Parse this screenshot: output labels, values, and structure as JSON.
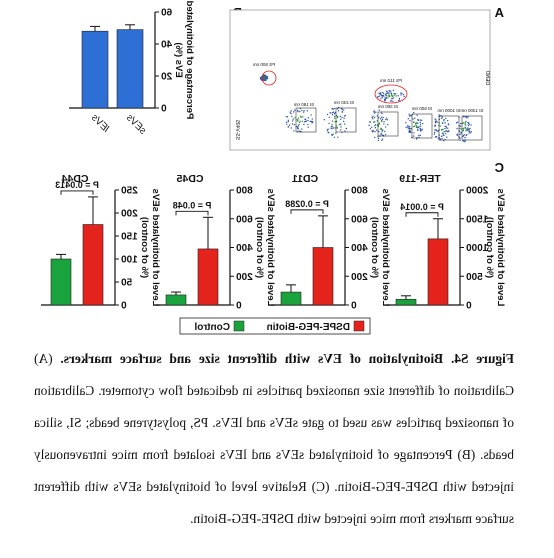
{
  "panel_labels": [
    "A",
    "B",
    "C"
  ],
  "panel_a": {
    "gates": [
      "PS 500 nm",
      "SI 1300 nm",
      "SI 1000 nm",
      "SI 500 nm",
      "SI 300 nm",
      "SI 240 nm",
      "SI 180 nm",
      "PS 110 nm"
    ],
    "x_axis": "SS-V405",
    "y_axis": "DENO"
  },
  "chart_data": [
    {
      "type": "bar",
      "ylabel": [
        "Percentage of biotinylated",
        "EVs (%)"
      ],
      "categories": [
        "sEVs",
        "lEVs"
      ],
      "color": "#2e6fd6",
      "values": [
        49,
        48
      ],
      "errors": [
        3,
        3
      ],
      "ylim": [
        0,
        60
      ],
      "yticks": [
        0,
        20,
        40,
        60
      ]
    },
    {
      "type": "bar",
      "title": "TER-119",
      "ylabel": [
        "Level of biotinylated sEVs",
        "(% of control)"
      ],
      "series": [
        {
          "name": "DSPE-PEG-Biotin",
          "color": "#e3231c",
          "values": [
            1150
          ],
          "errors": [
            350
          ]
        },
        {
          "name": "Control",
          "color": "#1aa33c",
          "values": [
            100
          ],
          "errors": [
            60
          ]
        }
      ],
      "annotation": "P = 0.0014",
      "ylim": [
        0,
        2000
      ],
      "yticks": [
        0,
        500,
        1000,
        1500,
        2000
      ]
    },
    {
      "type": "bar",
      "title": "CD11",
      "ylabel": [
        "Level of biotinylated sEVs",
        "(% of control)"
      ],
      "series": [
        {
          "name": "DSPE-PEG-Biotin",
          "color": "#e3231c",
          "values": [
            400
          ],
          "errors": [
            220
          ]
        },
        {
          "name": "Control",
          "color": "#1aa33c",
          "values": [
            90
          ],
          "errors": [
            50
          ]
        }
      ],
      "annotation": "P = 0.0288",
      "ylim": [
        0,
        800
      ],
      "yticks": [
        0,
        200,
        400,
        600,
        800
      ]
    },
    {
      "type": "bar",
      "title": "CD45",
      "ylabel": [
        "Level of biotinylated sEVs",
        "(% of control)"
      ],
      "series": [
        {
          "name": "DSPE-PEG-Biotin",
          "color": "#e3231c",
          "values": [
            390
          ],
          "errors": [
            220
          ]
        },
        {
          "name": "Control",
          "color": "#1aa33c",
          "values": [
            70
          ],
          "errors": [
            20
          ]
        }
      ],
      "annotation": "P = 0.048",
      "ylim": [
        0,
        800
      ],
      "yticks": [
        0,
        200,
        400,
        600,
        800
      ]
    },
    {
      "type": "bar",
      "title": "CD44",
      "ylabel": [
        "Level of biotinylated sEVs",
        "(% of control)"
      ],
      "series": [
        {
          "name": "DSPE-PEG-Biotin",
          "color": "#e3231c",
          "values": [
            175
          ],
          "errors": [
            60
          ]
        },
        {
          "name": "Control",
          "color": "#1aa33c",
          "values": [
            100
          ],
          "errors": [
            10
          ]
        }
      ],
      "annotation": "P = 0.0413",
      "ylim": [
        0,
        250
      ],
      "yticks": [
        0,
        50,
        100,
        150,
        200,
        250
      ]
    }
  ],
  "caption": {
    "title": "Figure S4. Biotinylation of EVs with different size and surface markers.",
    "body": "(A) Calibration of different size nanosized particles in dedicated flow cytometer. Calibration of nanosized particles was used to gate sEVs and lEVs. PS, polystyrene beads; SI, silica beads. (B) Percentage of biotinylated sEVs and lEVs isolated from mice intravenously injected with DSPE-PEG-Biotin. (C) Relative level of biotinylated sEVs with different surface markers from mice injected with DSPE-PEG-Biotin."
  }
}
